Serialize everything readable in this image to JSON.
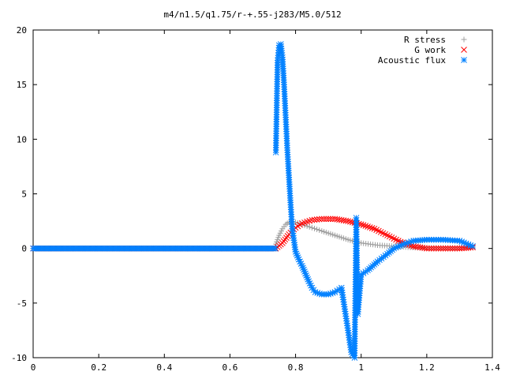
{
  "chart_data": {
    "type": "scatter",
    "title": "m4/n1.5/q1.75/r-+.55-j283/M5.0/512",
    "xlabel": "",
    "ylabel": "",
    "xlim": [
      0,
      1.4
    ],
    "ylim": [
      -10,
      20
    ],
    "xticks": [
      "0",
      "0.2",
      "0.4",
      "0.6",
      "0.8",
      "1",
      "1.2",
      "1.4"
    ],
    "yticks": [
      "-10",
      "-5",
      "0",
      "5",
      "10",
      "15",
      "20"
    ],
    "grid": false,
    "legend_position": "top-right",
    "series": [
      {
        "name": "R stress",
        "marker": "plus",
        "color": "#a0a0a0",
        "x": [
          0.74,
          0.75,
          0.76,
          0.77,
          0.78,
          0.8,
          0.82,
          0.85,
          0.88,
          0.92,
          0.96,
          1.0,
          1.05,
          1.1,
          1.15,
          1.2,
          1.25,
          1.3,
          1.34
        ],
        "y": [
          0.4,
          1.2,
          1.8,
          2.2,
          2.4,
          2.4,
          2.2,
          1.9,
          1.6,
          1.2,
          0.8,
          0.5,
          0.3,
          0.2,
          0.1,
          0.05,
          0.05,
          0.05,
          0.1
        ]
      },
      {
        "name": "G work",
        "marker": "cross",
        "color": "#ff0000",
        "x": [
          0.74,
          0.76,
          0.78,
          0.8,
          0.82,
          0.85,
          0.88,
          0.92,
          0.96,
          1.0,
          1.04,
          1.08,
          1.12,
          1.16,
          1.2,
          1.25,
          1.3,
          1.34
        ],
        "y": [
          0.0,
          0.5,
          1.3,
          1.9,
          2.3,
          2.6,
          2.7,
          2.7,
          2.5,
          2.2,
          1.8,
          1.2,
          0.6,
          0.2,
          0.0,
          0.0,
          0.0,
          0.1
        ]
      },
      {
        "name": "Acoustic flux",
        "marker": "star",
        "color": "#0080ff",
        "x": [
          0.74,
          0.745,
          0.75,
          0.755,
          0.76,
          0.765,
          0.77,
          0.775,
          0.78,
          0.785,
          0.79,
          0.8,
          0.81,
          0.82,
          0.83,
          0.84,
          0.85,
          0.86,
          0.88,
          0.9,
          0.92,
          0.94,
          0.96,
          0.97,
          0.98,
          0.985,
          0.99,
          1.0,
          1.02,
          1.05,
          1.08,
          1.1,
          1.13,
          1.16,
          1.2,
          1.25,
          1.3,
          1.34
        ],
        "y": [
          8.8,
          17.0,
          18.6,
          18.7,
          17.5,
          15.0,
          12.0,
          9.0,
          6.5,
          4.0,
          1.8,
          -0.3,
          -1.0,
          -1.6,
          -2.3,
          -3.0,
          -3.6,
          -4.0,
          -4.2,
          -4.2,
          -4.0,
          -3.6,
          -7.5,
          -9.5,
          -10.0,
          2.8,
          -6.0,
          -2.4,
          -2.0,
          -1.2,
          -0.5,
          0.0,
          0.4,
          0.7,
          0.8,
          0.8,
          0.7,
          0.2
        ]
      }
    ]
  }
}
